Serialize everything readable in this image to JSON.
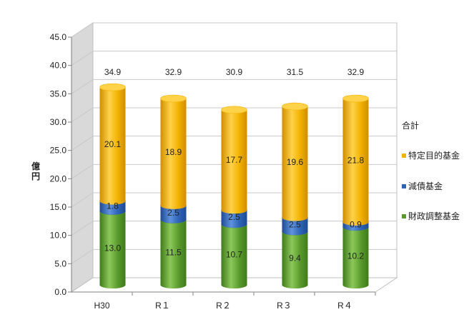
{
  "chart_data": {
    "type": "bar",
    "stacked": true,
    "style": "3d-cylinder",
    "categories": [
      "H30",
      "R１",
      "R２",
      "R３",
      "R４"
    ],
    "series": [
      {
        "name": "財政調整基金",
        "values": [
          13.0,
          11.5,
          10.7,
          9.4,
          10.2
        ],
        "color": "#5a9a2c"
      },
      {
        "name": "減債基金",
        "values": [
          1.8,
          2.5,
          2.5,
          2.5,
          0.9
        ],
        "color": "#2e64b8"
      },
      {
        "name": "特定目的基金",
        "values": [
          20.1,
          18.9,
          17.7,
          19.6,
          21.8
        ],
        "color": "#f2b200"
      }
    ],
    "totals_series_name": "合計",
    "totals": [
      34.9,
      32.9,
      30.9,
      31.5,
      32.9
    ],
    "value_labels": [
      [
        "13.0",
        "11.5",
        "10.7",
        "9.4",
        "10.2"
      ],
      [
        "1.8",
        "2.5",
        "2.5",
        "2.5",
        "0.9"
      ],
      [
        "20.1",
        "18.9",
        "17.7",
        "19.6",
        "21.8"
      ]
    ],
    "total_labels": [
      "34.9",
      "32.9",
      "30.9",
      "31.5",
      "32.9"
    ],
    "ylabel": "億円",
    "ylim": [
      0,
      45
    ],
    "yticks": [
      "0.0",
      "5.0",
      "10.0",
      "15.0",
      "20.0",
      "25.0",
      "30.0",
      "35.0",
      "40.0",
      "45.0"
    ],
    "grid": true,
    "legend_position": "right"
  }
}
